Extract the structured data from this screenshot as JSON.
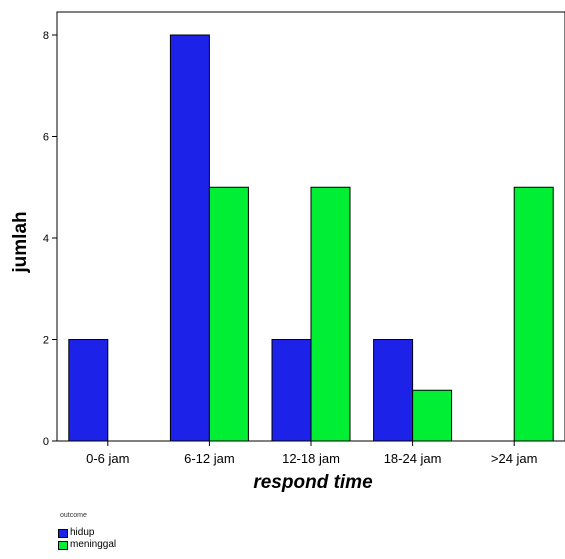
{
  "chart_data": {
    "type": "bar",
    "categories": [
      "0-6 jam",
      "6-12 jam",
      "12-18 jam",
      "18-24 jam",
      ">24 jam"
    ],
    "series": [
      {
        "name": "hidup",
        "color": "#1c22e8",
        "values": [
          2,
          8,
          2,
          2,
          0
        ]
      },
      {
        "name": "meninggal",
        "color": "#00ee33",
        "values": [
          0,
          5,
          5,
          1,
          5
        ]
      }
    ],
    "title": "",
    "xlabel": "respond time",
    "ylabel": "jumlah",
    "ylim": [
      0,
      8.6
    ],
    "yticks": [
      "0",
      "2",
      "4",
      "6",
      "8"
    ],
    "legend_title": "outcome",
    "legend_position": "bottom-left",
    "grid": false
  }
}
